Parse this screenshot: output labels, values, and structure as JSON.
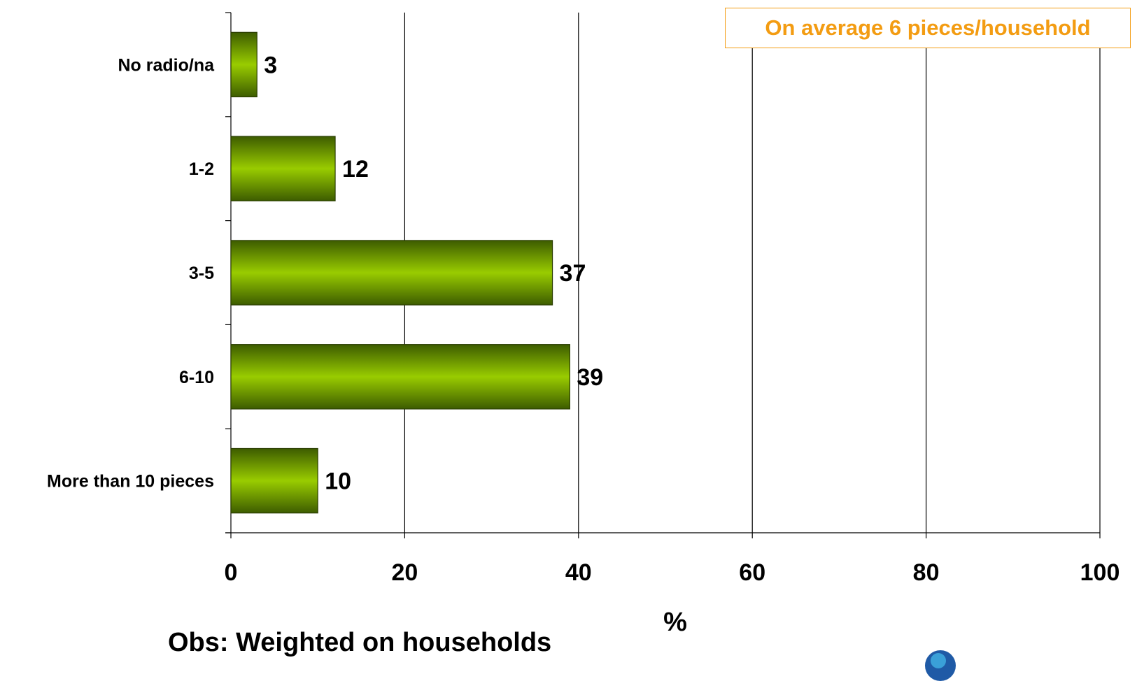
{
  "chart_data": {
    "type": "bar",
    "orientation": "horizontal",
    "categories": [
      "No radio/na",
      "1-2",
      "3-5",
      "6-10",
      "More than 10 pieces"
    ],
    "values": [
      3,
      12,
      37,
      39,
      10
    ],
    "xlabel": "%",
    "xlim": [
      0,
      100
    ],
    "xticks": [
      0,
      20,
      40,
      60,
      80,
      100
    ],
    "grid": "vertical",
    "bar_color": "#99cc00",
    "bar_shade_color": "#3d5c00",
    "annotation": "On average 6 pieces/household",
    "annotation_color": "#f39c12"
  },
  "footnote": "Obs: Weighted on households"
}
